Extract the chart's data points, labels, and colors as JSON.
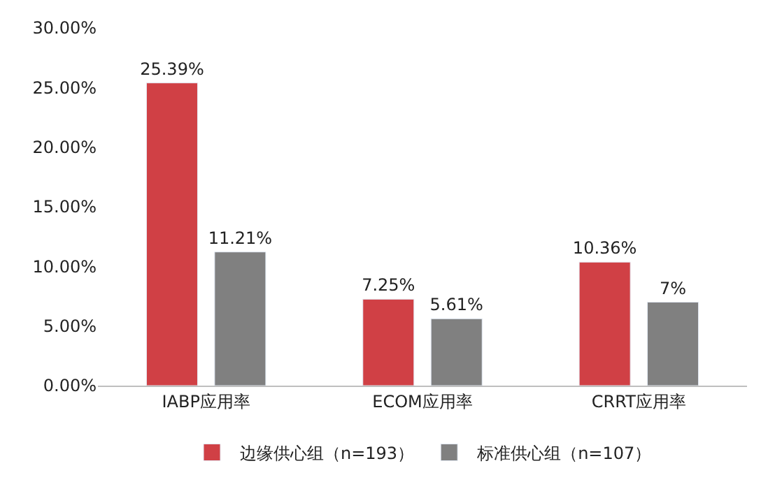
{
  "chart_data": {
    "type": "bar",
    "categories": [
      "IABP应用率",
      "ECOM应用率",
      "CRRT应用率"
    ],
    "series": [
      {
        "name": "边缘供心组（n=193）",
        "color": "#d04045",
        "values": [
          25.39,
          7.25,
          10.36
        ],
        "value_labels": [
          "25.39%",
          "7.25%",
          "10.36%"
        ]
      },
      {
        "name": "标准供心组（n=107）",
        "color": "#808080",
        "values": [
          11.21,
          5.61,
          7
        ],
        "value_labels": [
          "11.21%",
          "5.61%",
          "7%"
        ]
      }
    ],
    "ylim": [
      0,
      30
    ],
    "yticks": [
      {
        "value": 0,
        "label": "0.00%"
      },
      {
        "value": 5,
        "label": "5.00%"
      },
      {
        "value": 10,
        "label": "10.00%"
      },
      {
        "value": 15,
        "label": "15.00%"
      },
      {
        "value": 20,
        "label": "20.00%"
      },
      {
        "value": 25,
        "label": "25.00%"
      },
      {
        "value": 30,
        "label": "30.00%"
      }
    ],
    "legend": "bottom"
  }
}
